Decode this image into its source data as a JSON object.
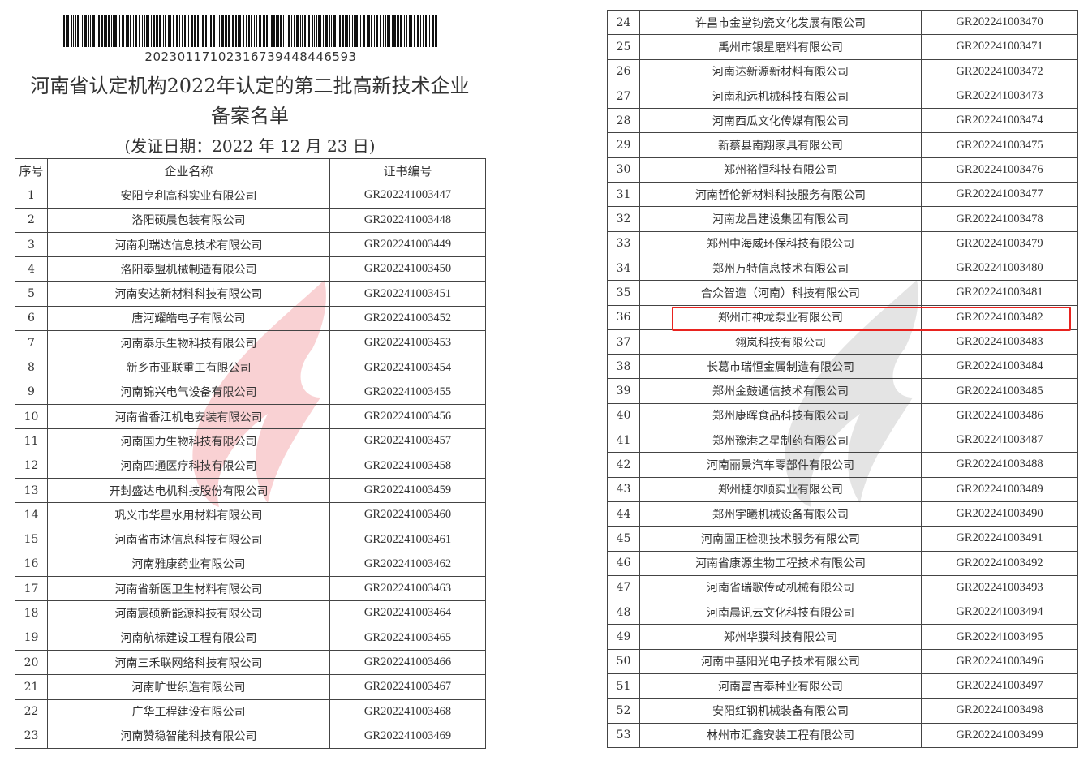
{
  "document": {
    "barcode_number": "20230117102316739448446593",
    "title_line1": "河南省认定机构2022年认定的第二批高新技术企业",
    "title_line2": "备案名单",
    "issue_date": "(发证日期：2022 年 12 月 23 日)",
    "columns": [
      "序号",
      "企业名称",
      "证书编号"
    ],
    "watermark_colors": {
      "left": "#e8323a",
      "right": "#888888"
    },
    "highlight_color": "#e8231f",
    "highlighted_row": "36",
    "rows": [
      [
        "1",
        "安阳亨利高科实业有限公司",
        "GR202241003447"
      ],
      [
        "2",
        "洛阳硕晨包装有限公司",
        "GR202241003448"
      ],
      [
        "3",
        "河南利瑞达信息技术有限公司",
        "GR202241003449"
      ],
      [
        "4",
        "洛阳泰盟机械制造有限公司",
        "GR202241003450"
      ],
      [
        "5",
        "河南安达新材料科技有限公司",
        "GR202241003451"
      ],
      [
        "6",
        "唐河耀皓电子有限公司",
        "GR202241003452"
      ],
      [
        "7",
        "河南泰乐生物科技有限公司",
        "GR202241003453"
      ],
      [
        "8",
        "新乡市亚联重工有限公司",
        "GR202241003454"
      ],
      [
        "9",
        "河南锦兴电气设备有限公司",
        "GR202241003455"
      ],
      [
        "10",
        "河南省香江机电安装有限公司",
        "GR202241003456"
      ],
      [
        "11",
        "河南国力生物科技有限公司",
        "GR202241003457"
      ],
      [
        "12",
        "河南四通医疗科技有限公司",
        "GR202241003458"
      ],
      [
        "13",
        "开封盛达电机科技股份有限公司",
        "GR202241003459"
      ],
      [
        "14",
        "巩义市华星水用材料有限公司",
        "GR202241003460"
      ],
      [
        "15",
        "河南省市沐信息科技有限公司",
        "GR202241003461"
      ],
      [
        "16",
        "河南雅康药业有限公司",
        "GR202241003462"
      ],
      [
        "17",
        "河南省新医卫生材料有限公司",
        "GR202241003463"
      ],
      [
        "18",
        "河南宸硕新能源科技有限公司",
        "GR202241003464"
      ],
      [
        "19",
        "河南航标建设工程有限公司",
        "GR202241003465"
      ],
      [
        "20",
        "河南三禾联网络科技有限公司",
        "GR202241003466"
      ],
      [
        "21",
        "河南旷世织造有限公司",
        "GR202241003467"
      ],
      [
        "22",
        "广华工程建设有限公司",
        "GR202241003468"
      ],
      [
        "23",
        "河南赞稳智能科技有限公司",
        "GR202241003469"
      ],
      [
        "24",
        "许昌市金堂钧瓷文化发展有限公司",
        "GR202241003470"
      ],
      [
        "25",
        "禹州市银星磨料有限公司",
        "GR202241003471"
      ],
      [
        "26",
        "河南达新源新材料有限公司",
        "GR202241003472"
      ],
      [
        "27",
        "河南和远机械科技有限公司",
        "GR202241003473"
      ],
      [
        "28",
        "河南西瓜文化传媒有限公司",
        "GR202241003474"
      ],
      [
        "29",
        "新蔡县南翔家具有限公司",
        "GR202241003475"
      ],
      [
        "30",
        "郑州裕恒科技有限公司",
        "GR202241003476"
      ],
      [
        "31",
        "河南哲伦新材料科技服务有限公司",
        "GR202241003477"
      ],
      [
        "32",
        "河南龙昌建设集团有限公司",
        "GR202241003478"
      ],
      [
        "33",
        "郑州中海威环保科技有限公司",
        "GR202241003479"
      ],
      [
        "34",
        "郑州万特信息技术有限公司",
        "GR202241003480"
      ],
      [
        "35",
        "合众智造（河南）科技有限公司",
        "GR202241003481"
      ],
      [
        "36",
        "郑州市神龙泵业有限公司",
        "GR202241003482"
      ],
      [
        "37",
        "翎岚科技有限公司",
        "GR202241003483"
      ],
      [
        "38",
        "长葛市瑞恒金属制造有限公司",
        "GR202241003484"
      ],
      [
        "39",
        "郑州金鼓通信技术有限公司",
        "GR202241003485"
      ],
      [
        "40",
        "郑州康晖食品科技有限公司",
        "GR202241003486"
      ],
      [
        "41",
        "郑州豫港之星制药有限公司",
        "GR202241003487"
      ],
      [
        "42",
        "河南丽景汽车零部件有限公司",
        "GR202241003488"
      ],
      [
        "43",
        "郑州捷尔顺实业有限公司",
        "GR202241003489"
      ],
      [
        "44",
        "郑州宇曦机械设备有限公司",
        "GR202241003490"
      ],
      [
        "45",
        "河南固正检测技术服务有限公司",
        "GR202241003491"
      ],
      [
        "46",
        "河南省康源生物工程技术有限公司",
        "GR202241003492"
      ],
      [
        "47",
        "河南省瑞歌传动机械有限公司",
        "GR202241003493"
      ],
      [
        "48",
        "河南晨讯云文化科技有限公司",
        "GR202241003494"
      ],
      [
        "49",
        "郑州华膜科技有限公司",
        "GR202241003495"
      ],
      [
        "50",
        "河南中基阳光电子技术有限公司",
        "GR202241003496"
      ],
      [
        "51",
        "河南富吉泰种业有限公司",
        "GR202241003497"
      ],
      [
        "52",
        "安阳红钢机械装备有限公司",
        "GR202241003498"
      ],
      [
        "53",
        "林州市汇鑫安装工程有限公司",
        "GR202241003499"
      ]
    ]
  }
}
